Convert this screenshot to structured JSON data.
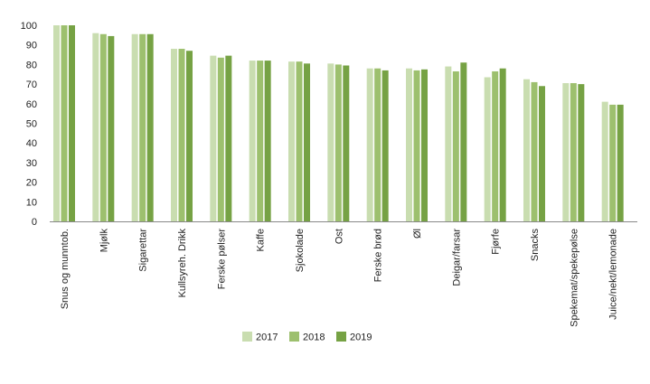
{
  "chart_data": {
    "type": "bar",
    "title": "",
    "xlabel": "",
    "ylabel": "",
    "ylim": [
      0,
      100
    ],
    "yticks": [
      0,
      10,
      20,
      30,
      40,
      50,
      60,
      70,
      80,
      90,
      100
    ],
    "grid": false,
    "legend_position": "bottom-center",
    "categories": [
      "Snus og munntob.",
      "Mjølk",
      "Sigarettar",
      "Kullsyreh. Drikk",
      "Ferske pølser",
      "Kaffe",
      "Sjokolade",
      "Ost",
      "Ferske brød",
      "Øl",
      "Deigar/farsar",
      "Fjørfe",
      "Snacks",
      "Spekemat/spekepølse",
      "Juice/nekt/lemonade"
    ],
    "series": [
      {
        "name": "2017",
        "color": "#c9ddb0",
        "values": [
          100,
          96,
          95.5,
          88,
          84.5,
          82,
          81.5,
          80.5,
          78,
          78,
          79,
          73.5,
          72.5,
          70.5,
          61
        ]
      },
      {
        "name": "2018",
        "color": "#9dc06e",
        "values": [
          100,
          95.5,
          95.5,
          88,
          83.5,
          82,
          81.5,
          80,
          78,
          77,
          76.5,
          76.5,
          71,
          70.5,
          59.5
        ]
      },
      {
        "name": "2019",
        "color": "#76a244",
        "values": [
          100,
          94.5,
          95.5,
          87,
          84.5,
          82,
          80.5,
          79.5,
          77,
          77.5,
          81,
          78,
          69,
          70,
          59.5
        ]
      }
    ]
  }
}
